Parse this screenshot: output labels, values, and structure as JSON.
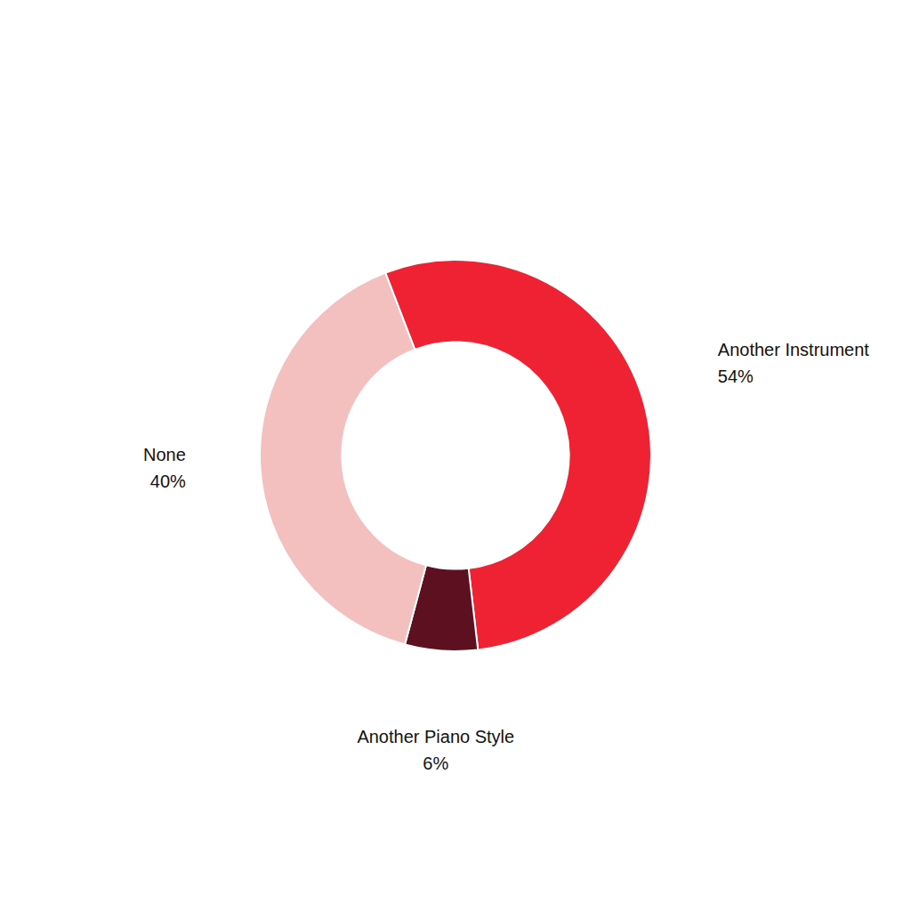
{
  "chart_data": {
    "type": "donut",
    "categories": [
      "Another Instrument",
      "Another Piano Style",
      "None"
    ],
    "values": [
      54,
      6,
      40
    ],
    "value_labels": [
      "54%",
      "6%",
      "40%"
    ],
    "colors": [
      "#EE2233",
      "#5C1020",
      "#F4BFBF"
    ]
  }
}
